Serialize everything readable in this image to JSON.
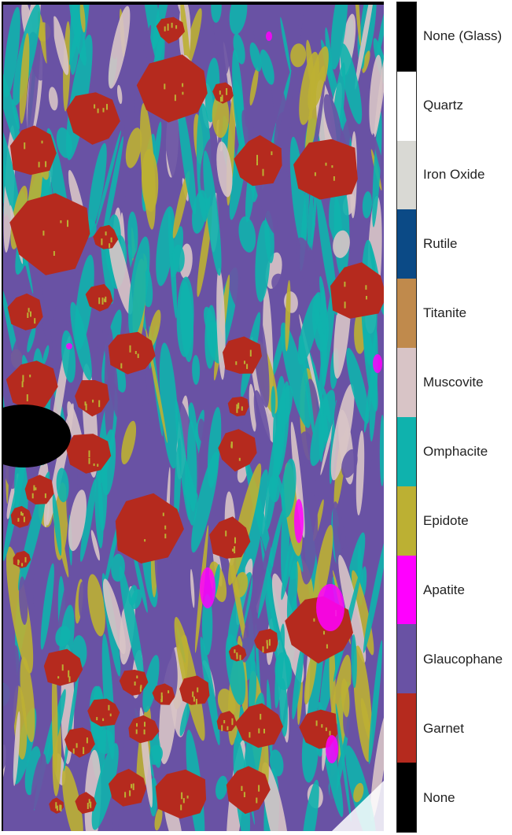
{
  "legend": [
    {
      "label": "None (Glass)",
      "color": "#000000"
    },
    {
      "label": "Quartz",
      "color": "#ffffff"
    },
    {
      "label": "Iron Oxide",
      "color": "#d9d9d4"
    },
    {
      "label": "Rutile",
      "color": "#0b4a86"
    },
    {
      "label": "Titanite",
      "color": "#c08a4c"
    },
    {
      "label": "Muscovite",
      "color": "#d8c4c6"
    },
    {
      "label": "Omphacite",
      "color": "#0fb2ad"
    },
    {
      "label": "Epidote",
      "color": "#bcb033"
    },
    {
      "label": "Apatite",
      "color": "#ff00ff"
    },
    {
      "label": "Glaucophane",
      "color": "#6952a4"
    },
    {
      "label": "Garnet",
      "color": "#b52a1e"
    },
    {
      "label": "None",
      "color": "#000000"
    }
  ]
}
